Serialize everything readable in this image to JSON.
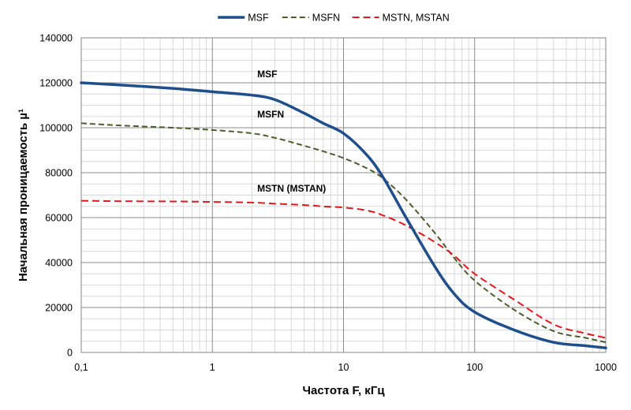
{
  "chart_data": {
    "type": "line",
    "title": "",
    "xlabel": "Частота F, кГц",
    "ylabel": "Начальная проницаемость µ¹",
    "x_scale": "log",
    "xlim": [
      0.1,
      1000
    ],
    "ylim": [
      0,
      140000
    ],
    "x_ticks": [
      0.1,
      1,
      10,
      100,
      1000
    ],
    "x_tick_labels": [
      "0,1",
      "1",
      "10",
      "100",
      "1000"
    ],
    "y_ticks": [
      0,
      20000,
      40000,
      60000,
      80000,
      100000,
      120000,
      140000
    ],
    "y_tick_labels": [
      "0",
      "20000",
      "40000",
      "60000",
      "80000",
      "100000",
      "120000",
      "140000"
    ],
    "grid": true,
    "legend": {
      "position": "top",
      "entries": [
        "MSF",
        "MSFN",
        "MSTN, MSTAN"
      ]
    },
    "series": [
      {
        "name": "MSF",
        "color": "#1f4e8c",
        "line_style": "solid",
        "x": [
          0.1,
          0.2,
          0.5,
          1,
          2,
          3,
          5,
          7,
          10,
          15,
          20,
          30,
          50,
          70,
          100,
          200,
          400,
          700,
          1000
        ],
        "y": [
          120000,
          119000,
          117500,
          116000,
          114500,
          112500,
          106500,
          102000,
          97500,
          88000,
          78000,
          60000,
          38000,
          26000,
          18000,
          10000,
          4500,
          3000,
          2000
        ]
      },
      {
        "name": "MSFN",
        "color": "#4d5d2a",
        "line_style": "dashed",
        "x": [
          0.1,
          0.2,
          0.5,
          1,
          2,
          3,
          5,
          7,
          10,
          15,
          20,
          30,
          50,
          70,
          100,
          200,
          400,
          700,
          1000
        ],
        "y": [
          102000,
          101000,
          100000,
          99000,
          97500,
          95500,
          92000,
          89500,
          86500,
          82000,
          77500,
          68000,
          53000,
          42000,
          32000,
          19000,
          9500,
          6500,
          4500
        ]
      },
      {
        "name": "MSTN, MSTAN",
        "color": "#e8161b",
        "line_style": "dashed",
        "x": [
          0.1,
          0.2,
          0.5,
          1,
          2,
          3,
          5,
          7,
          10,
          15,
          20,
          30,
          50,
          70,
          100,
          200,
          400,
          700,
          1000
        ],
        "y": [
          67500,
          67300,
          67200,
          67000,
          66700,
          66200,
          65600,
          65000,
          64500,
          63200,
          61000,
          56500,
          49000,
          43000,
          35000,
          23500,
          12500,
          8500,
          6500
        ]
      }
    ],
    "annotations": [
      {
        "text": "MSF",
        "x": 2.2,
        "y": 122500
      },
      {
        "text": "MSFN",
        "x": 2.2,
        "y": 104500
      },
      {
        "text": "MSTN (MSTAN)",
        "x": 2.2,
        "y": 71500
      }
    ]
  }
}
